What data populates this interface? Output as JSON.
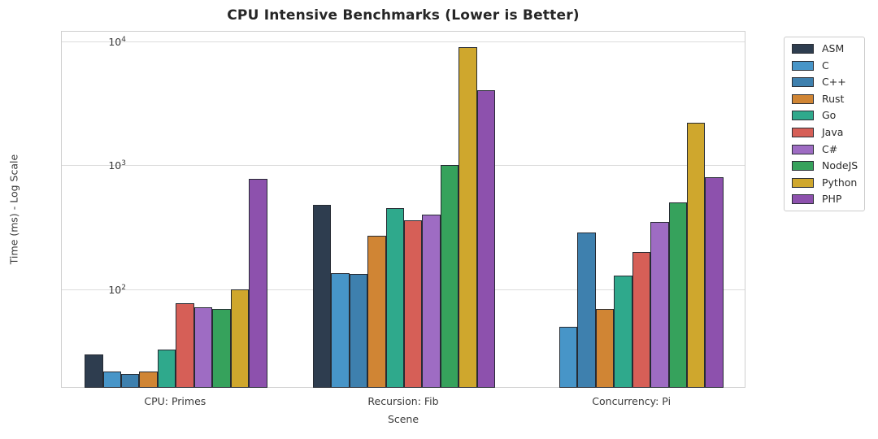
{
  "chart_data": {
    "type": "bar",
    "title": "CPU Intensive Benchmarks (Lower is Better)",
    "xlabel": "Scene",
    "ylabel": "Time (ms) - Log Scale",
    "yscale": "log",
    "ylim": [
      16,
      11900
    ],
    "grid": "horizontal decade gridlines only",
    "legend_position": "outside upper right",
    "bar_edge_color": "#262b33",
    "yticks": [
      {
        "base": "10",
        "exp": "2",
        "value": 100
      },
      {
        "base": "10",
        "exp": "3",
        "value": 1000
      },
      {
        "base": "10",
        "exp": "4",
        "value": 10000
      }
    ],
    "categories": [
      "CPU: Primes",
      "Recursion: Fib",
      "Concurrency: Pi"
    ],
    "series": [
      {
        "name": "ASM",
        "color": "#2e3d4f",
        "values": [
          30,
          480,
          null
        ]
      },
      {
        "name": "C",
        "color": "#4795c8",
        "values": [
          22,
          135,
          50
        ]
      },
      {
        "name": "C++",
        "color": "#3e80ae",
        "values": [
          21,
          134,
          290
        ]
      },
      {
        "name": "Rust",
        "color": "#d08534",
        "values": [
          22,
          270,
          70
        ]
      },
      {
        "name": "Go",
        "color": "#2fa98c",
        "values": [
          33,
          450,
          130
        ]
      },
      {
        "name": "Java",
        "color": "#d65f57",
        "values": [
          78,
          360,
          200
        ]
      },
      {
        "name": "C#",
        "color": "#9e6cc3",
        "values": [
          72,
          400,
          350
        ]
      },
      {
        "name": "NodeJS",
        "color": "#36a25c",
        "values": [
          70,
          1000,
          500
        ]
      },
      {
        "name": "Python",
        "color": "#cfa72d",
        "values": [
          100,
          9000,
          2200
        ]
      },
      {
        "name": "PHP",
        "color": "#8d51ad",
        "values": [
          780,
          4000,
          800
        ]
      }
    ]
  }
}
